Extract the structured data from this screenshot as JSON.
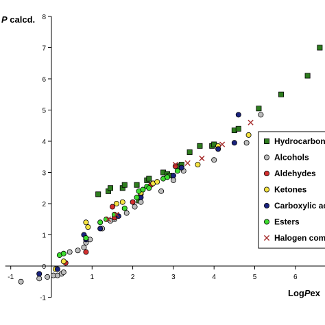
{
  "chart_data": {
    "type": "scatter",
    "title": "",
    "xlabel": "LogPexp.",
    "ylabel": "LogPcalcd.",
    "xlabel_visible_prefix": "Log",
    "xlabel_visible_italic": "P",
    "xlabel_visible_suffix": "ex",
    "ylabel_visible_italic": "P",
    "ylabel_visible_suffix": " calcd.",
    "xlim": [
      -1,
      7
    ],
    "ylim": [
      -1,
      8
    ],
    "x_ticks": [
      -1,
      1,
      2,
      3,
      4,
      5,
      6
    ],
    "y_ticks": [
      -1,
      0,
      1,
      2,
      3,
      4,
      5,
      6,
      7,
      8
    ],
    "grid": false,
    "legend_position": "right",
    "series": [
      {
        "name": "Hydrocarbons",
        "legend_text": "Hydrocarbon",
        "marker": "square",
        "color": "#2e7d1e",
        "points": [
          [
            1.15,
            2.3
          ],
          [
            1.4,
            2.4
          ],
          [
            1.45,
            2.5
          ],
          [
            1.75,
            2.5
          ],
          [
            1.8,
            2.6
          ],
          [
            2.1,
            2.6
          ],
          [
            2.15,
            2.1
          ],
          [
            2.35,
            2.75
          ],
          [
            2.4,
            2.8
          ],
          [
            2.75,
            3.0
          ],
          [
            2.85,
            2.95
          ],
          [
            2.9,
            2.9
          ],
          [
            3.15,
            3.2
          ],
          [
            3.2,
            3.25
          ],
          [
            3.4,
            3.65
          ],
          [
            3.65,
            3.85
          ],
          [
            3.95,
            3.85
          ],
          [
            4.0,
            3.9
          ],
          [
            4.5,
            4.35
          ],
          [
            4.6,
            4.4
          ],
          [
            5.1,
            5.05
          ],
          [
            5.65,
            5.5
          ],
          [
            6.3,
            6.1
          ],
          [
            6.6,
            7.0
          ]
        ]
      },
      {
        "name": "Alcohols",
        "marker": "circle",
        "color": "#bdbdbd",
        "points": [
          [
            -0.75,
            -0.5
          ],
          [
            -0.3,
            -0.4
          ],
          [
            -0.1,
            -0.35
          ],
          [
            0.05,
            -0.3
          ],
          [
            0.15,
            -0.3
          ],
          [
            0.25,
            -0.25
          ],
          [
            0.3,
            -0.2
          ],
          [
            0.45,
            0.45
          ],
          [
            0.65,
            0.5
          ],
          [
            0.8,
            0.6
          ],
          [
            0.85,
            0.75
          ],
          [
            0.95,
            0.85
          ],
          [
            1.25,
            1.2
          ],
          [
            1.45,
            1.45
          ],
          [
            1.55,
            1.5
          ],
          [
            1.85,
            1.7
          ],
          [
            2.05,
            1.9
          ],
          [
            2.2,
            2.05
          ],
          [
            2.7,
            2.4
          ],
          [
            3.0,
            2.75
          ],
          [
            3.25,
            3.05
          ],
          [
            4.0,
            3.4
          ],
          [
            4.8,
            3.95
          ],
          [
            5.15,
            4.85
          ]
        ]
      },
      {
        "name": "Aldehydes",
        "marker": "circle",
        "color": "#d32f2f",
        "points": [
          [
            0.35,
            0.1
          ],
          [
            0.85,
            0.45
          ],
          [
            1.5,
            1.9
          ],
          [
            1.55,
            1.55
          ],
          [
            2.0,
            2.05
          ],
          [
            2.2,
            2.3
          ],
          [
            2.45,
            2.6
          ],
          [
            3.05,
            3.2
          ]
        ]
      },
      {
        "name": "Ketones",
        "marker": "circle",
        "color": "#f5e342",
        "points": [
          [
            0.1,
            -0.1
          ],
          [
            0.3,
            0.15
          ],
          [
            0.85,
            1.4
          ],
          [
            0.9,
            1.25
          ],
          [
            1.6,
            2.0
          ],
          [
            1.75,
            2.05
          ],
          [
            2.2,
            2.35
          ],
          [
            2.5,
            2.65
          ],
          [
            2.6,
            2.7
          ],
          [
            3.6,
            3.25
          ],
          [
            4.1,
            3.85
          ],
          [
            4.85,
            4.2
          ]
        ]
      },
      {
        "name": "Carboxylic acids",
        "legend_text": "Carboxylic ac",
        "marker": "circle",
        "color": "#1a237e",
        "points": [
          [
            -0.3,
            -0.25
          ],
          [
            0.15,
            -0.1
          ],
          [
            0.8,
            1.0
          ],
          [
            0.85,
            0.85
          ],
          [
            1.2,
            1.2
          ],
          [
            1.65,
            1.6
          ],
          [
            2.2,
            2.2
          ],
          [
            3.0,
            2.9
          ],
          [
            3.2,
            3.15
          ],
          [
            4.1,
            3.75
          ],
          [
            4.5,
            3.95
          ],
          [
            4.6,
            4.85
          ]
        ]
      },
      {
        "name": "Esters",
        "marker": "circle",
        "color": "#3ddc2f",
        "points": [
          [
            0.2,
            0.35
          ],
          [
            0.3,
            0.4
          ],
          [
            0.85,
            0.9
          ],
          [
            1.2,
            1.4
          ],
          [
            1.35,
            1.5
          ],
          [
            1.55,
            1.65
          ],
          [
            1.8,
            1.85
          ],
          [
            2.1,
            2.2
          ],
          [
            2.15,
            2.4
          ],
          [
            2.25,
            2.45
          ],
          [
            2.35,
            2.55
          ],
          [
            2.4,
            2.5
          ],
          [
            2.75,
            2.8
          ],
          [
            2.85,
            2.85
          ],
          [
            3.1,
            3.05
          ]
        ]
      },
      {
        "name": "Halogen compounds",
        "legend_text": "Halogen com",
        "marker": "x",
        "color": "#a52a2a",
        "points": [
          [
            1.4,
            1.5
          ],
          [
            1.6,
            1.65
          ],
          [
            3.05,
            3.25
          ],
          [
            3.35,
            3.3
          ],
          [
            3.7,
            3.45
          ],
          [
            4.2,
            3.9
          ],
          [
            4.9,
            4.6
          ]
        ]
      }
    ]
  }
}
